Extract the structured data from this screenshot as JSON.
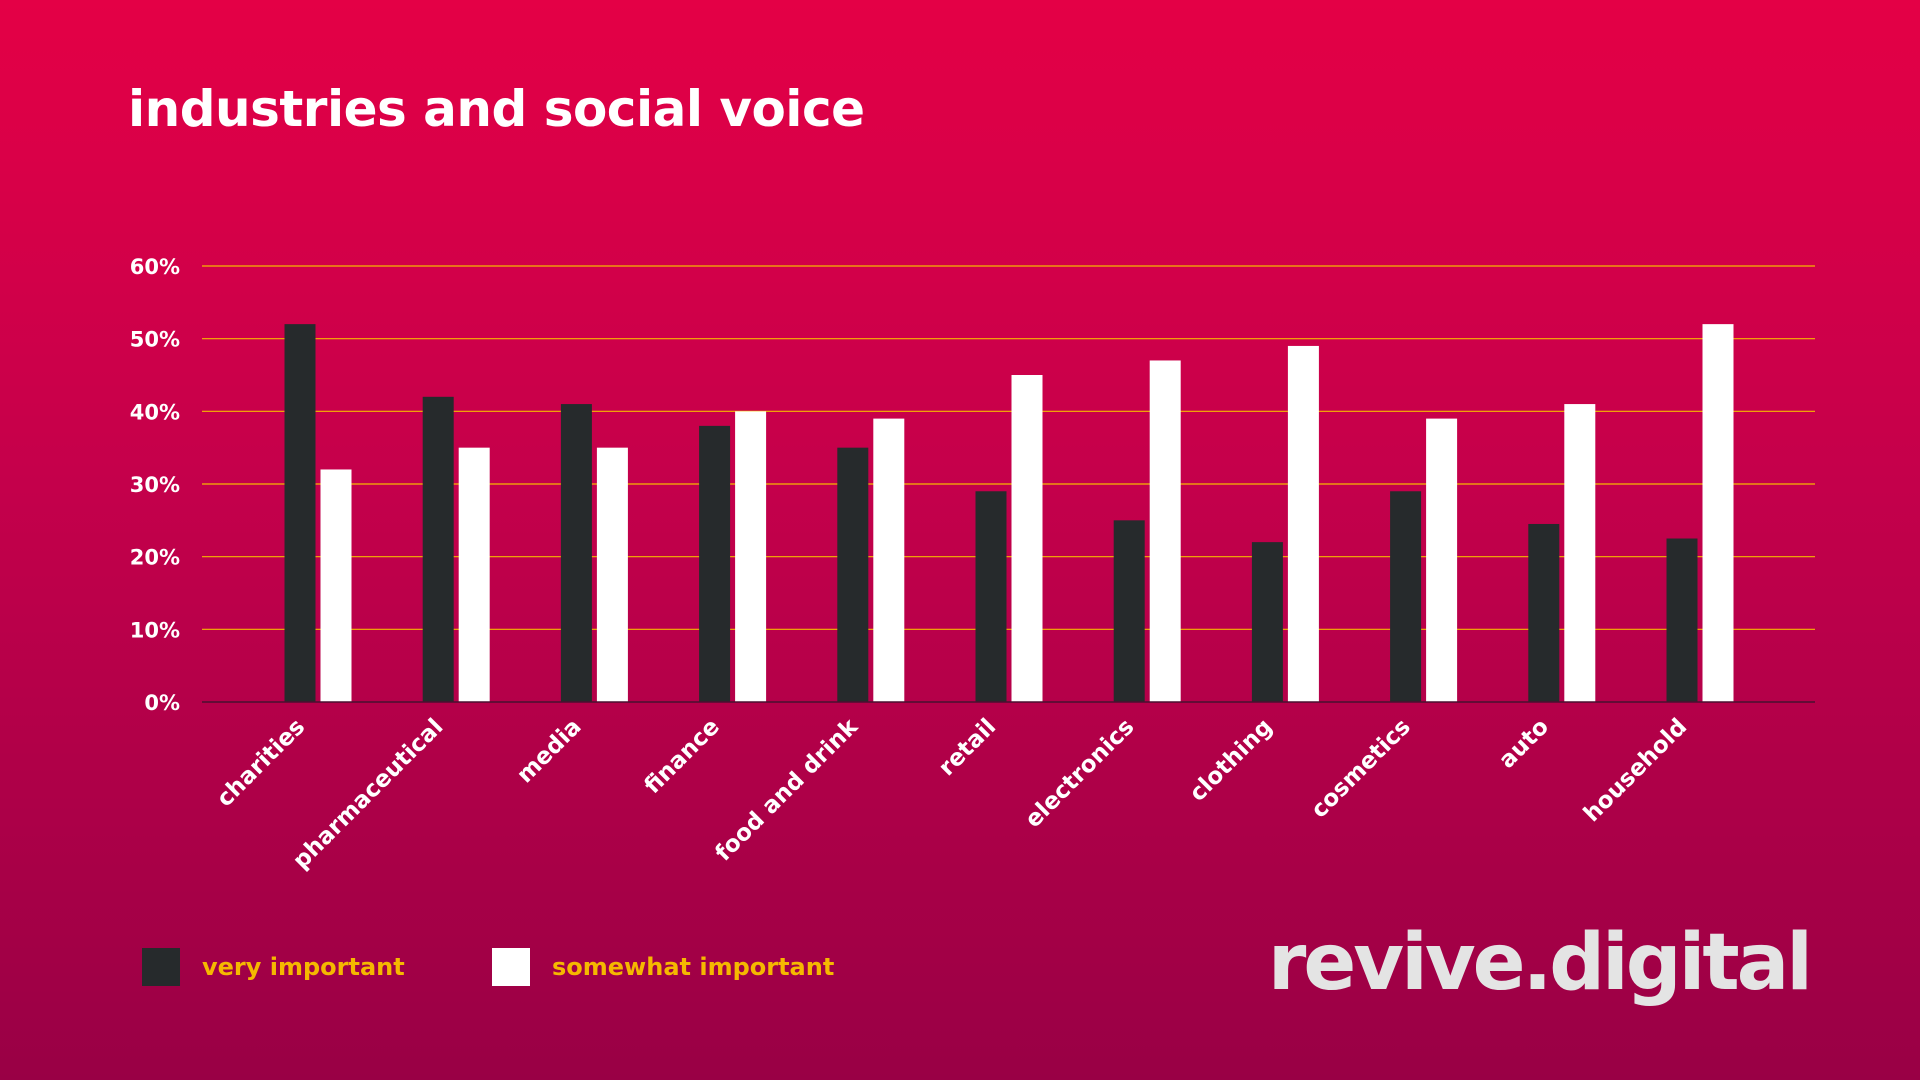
{
  "colors": {
    "very_important": "#262a2c",
    "somewhat_important": "#ffffff",
    "gridline": "#f5b800",
    "legend_text": "#f5b800"
  },
  "logo": {
    "text": "revive.digital"
  },
  "chart_data": {
    "type": "bar",
    "title": "industries and social voice",
    "categories": [
      "charities",
      "pharmaceutical",
      "media",
      "finance",
      "food and drink",
      "retail",
      "electronics",
      "clothing",
      "cosmetics",
      "auto",
      "household"
    ],
    "series": [
      {
        "name": "very important",
        "values": [
          52,
          42,
          41,
          38,
          35,
          29,
          25,
          22,
          29,
          24.5,
          22.5
        ]
      },
      {
        "name": "somewhat important",
        "values": [
          32,
          35,
          35,
          40,
          39,
          45,
          47,
          49,
          39,
          41,
          52
        ]
      }
    ],
    "ylim": [
      0,
      60
    ],
    "yticks": [
      0,
      10,
      20,
      30,
      40,
      50,
      60
    ],
    "ytick_suffix": "%",
    "grid": true,
    "legend_position": "bottom-left"
  }
}
